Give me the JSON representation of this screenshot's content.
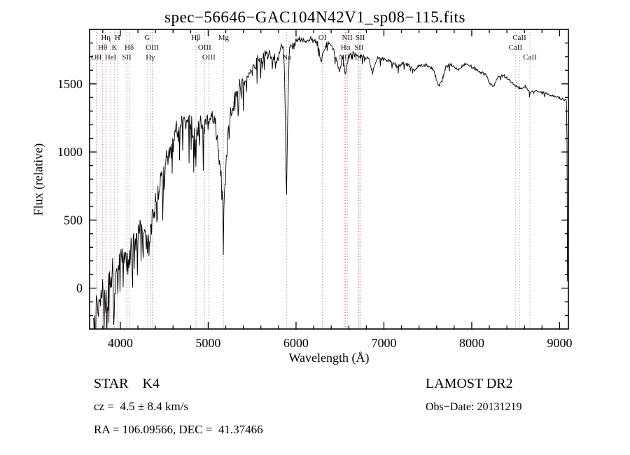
{
  "window": {
    "background": "#ffffff"
  },
  "footer": {
    "object_type": "STAR    K4",
    "survey": "LAMOST DR2",
    "cz": "cz =  4.5 ± 8.4 km/s",
    "obs_date": "Obs−Date: 20131219",
    "coordinates": "RA = 106.09566, DEC =  41.37466"
  },
  "chart_data": {
    "type": "line",
    "title": "spec−56646−GAC104N42V1_sp08−115.fits",
    "xlabel": "Wavelength (Å)",
    "ylabel": "Flux (relative)",
    "xlim": [
      3650,
      9100
    ],
    "ylim": [
      -300,
      1900
    ],
    "x_ticks": [
      4000,
      5000,
      6000,
      7000,
      8000,
      9000
    ],
    "y_ticks": [
      0,
      500,
      1000,
      1500
    ],
    "x_minor_step": 200,
    "y_minor_step": 100,
    "grid": false,
    "legend": "none",
    "line_colors": {
      "emission": "#dd8a8a",
      "absorption": "#b3b3b3"
    },
    "spectral_lines": [
      {
        "label": "OII",
        "wavelength": 3727,
        "row": 3,
        "kind": "emission"
      },
      {
        "label": "Hθ",
        "wavelength": 3798,
        "row": 2,
        "kind": "emission"
      },
      {
        "label": "Hη",
        "wavelength": 3835,
        "row": 1,
        "kind": "emission"
      },
      {
        "label": "HeI",
        "wavelength": 3889,
        "row": 3,
        "kind": "emission"
      },
      {
        "label": "K",
        "wavelength": 3933,
        "row": 2,
        "kind": "absorption"
      },
      {
        "label": "H",
        "wavelength": 3968,
        "row": 1,
        "kind": "absorption"
      },
      {
        "label": "SII",
        "wavelength": 4072,
        "row": 3,
        "kind": "emission"
      },
      {
        "label": "Hδ",
        "wavelength": 4101,
        "row": 2,
        "kind": "emission"
      },
      {
        "label": "G",
        "wavelength": 4305,
        "row": 1,
        "kind": "absorption"
      },
      {
        "label": "Hγ",
        "wavelength": 4340,
        "row": 3,
        "kind": "emission"
      },
      {
        "label": "OIII",
        "wavelength": 4363,
        "row": 2,
        "kind": "emission"
      },
      {
        "label": "Hβ",
        "wavelength": 4861,
        "row": 1,
        "kind": "emission"
      },
      {
        "label": "OIII",
        "wavelength": 4959,
        "row": 2,
        "kind": "emission"
      },
      {
        "label": "OIII",
        "wavelength": 5007,
        "row": 3,
        "kind": "emission"
      },
      {
        "label": "Mg",
        "wavelength": 5175,
        "row": 1,
        "kind": "absorption"
      },
      {
        "label": "Na",
        "wavelength": 5893,
        "row": 3,
        "kind": "absorption"
      },
      {
        "label": "OI",
        "wavelength": 6300,
        "row": 1,
        "kind": "emission"
      },
      {
        "label": "NII",
        "wavelength": 6548,
        "row": 3,
        "kind": "emission"
      },
      {
        "label": "Hα",
        "wavelength": 6563,
        "row": 2,
        "kind": "emission"
      },
      {
        "label": "NII",
        "wavelength": 6583,
        "row": 1,
        "kind": "emission"
      },
      {
        "label": "Li",
        "wavelength": 6708,
        "row": 3,
        "kind": "absorption"
      },
      {
        "label": "SII",
        "wavelength": 6716,
        "row": 2,
        "kind": "emission"
      },
      {
        "label": "SII",
        "wavelength": 6731,
        "row": 1,
        "kind": "emission"
      },
      {
        "label": "CaII",
        "wavelength": 8498,
        "row": 2,
        "kind": "absorption"
      },
      {
        "label": "CaII",
        "wavelength": 8542,
        "row": 1,
        "kind": "absorption"
      },
      {
        "label": "CaII",
        "wavelength": 8662,
        "row": 3,
        "kind": "absorption"
      }
    ],
    "series": [
      {
        "name": "flux",
        "color": "#000000",
        "envelope": [
          [
            3690,
            -150
          ],
          [
            3710,
            -120
          ],
          [
            3730,
            -40
          ],
          [
            3750,
            -80
          ],
          [
            3770,
            10
          ],
          [
            3800,
            60
          ],
          [
            3830,
            0
          ],
          [
            3860,
            150
          ],
          [
            3890,
            90
          ],
          [
            3915,
            200
          ],
          [
            3935,
            90
          ],
          [
            3955,
            220
          ],
          [
            3970,
            130
          ],
          [
            4000,
            280
          ],
          [
            4050,
            330
          ],
          [
            4100,
            240
          ],
          [
            4150,
            430
          ],
          [
            4200,
            470
          ],
          [
            4260,
            520
          ],
          [
            4305,
            430
          ],
          [
            4340,
            470
          ],
          [
            4380,
            650
          ],
          [
            4430,
            750
          ],
          [
            4480,
            900
          ],
          [
            4530,
            1000
          ],
          [
            4580,
            1120
          ],
          [
            4630,
            1210
          ],
          [
            4680,
            1260
          ],
          [
            4730,
            1280
          ],
          [
            4780,
            1260
          ],
          [
            4830,
            1240
          ],
          [
            4861,
            1150
          ],
          [
            4900,
            1260
          ],
          [
            4950,
            1280
          ],
          [
            5000,
            1290
          ],
          [
            5050,
            1280
          ],
          [
            5100,
            1180
          ],
          [
            5140,
            900
          ],
          [
            5175,
            580
          ],
          [
            5210,
            1050
          ],
          [
            5250,
            1300
          ],
          [
            5300,
            1430
          ],
          [
            5350,
            1510
          ],
          [
            5400,
            1550
          ],
          [
            5450,
            1590
          ],
          [
            5500,
            1650
          ],
          [
            5550,
            1700
          ],
          [
            5600,
            1720
          ],
          [
            5650,
            1740
          ],
          [
            5700,
            1760
          ],
          [
            5740,
            1720
          ],
          [
            5780,
            1680
          ],
          [
            5820,
            1770
          ],
          [
            5860,
            1800
          ],
          [
            5878,
            1300
          ],
          [
            5890,
            640
          ],
          [
            5904,
            1250
          ],
          [
            5925,
            1790
          ],
          [
            5960,
            1810
          ],
          [
            6000,
            1830
          ],
          [
            6050,
            1840
          ],
          [
            6100,
            1820
          ],
          [
            6150,
            1850
          ],
          [
            6200,
            1830
          ],
          [
            6250,
            1810
          ],
          [
            6285,
            1680
          ],
          [
            6310,
            1750
          ],
          [
            6350,
            1820
          ],
          [
            6400,
            1800
          ],
          [
            6450,
            1720
          ],
          [
            6495,
            1600
          ],
          [
            6530,
            1720
          ],
          [
            6563,
            1580
          ],
          [
            6600,
            1720
          ],
          [
            6650,
            1740
          ],
          [
            6700,
            1720
          ],
          [
            6760,
            1710
          ],
          [
            6820,
            1700
          ],
          [
            6870,
            1600
          ],
          [
            6920,
            1700
          ],
          [
            6980,
            1700
          ],
          [
            7040,
            1680
          ],
          [
            7100,
            1670
          ],
          [
            7160,
            1630
          ],
          [
            7220,
            1660
          ],
          [
            7280,
            1650
          ],
          [
            7340,
            1610
          ],
          [
            7400,
            1640
          ],
          [
            7460,
            1650
          ],
          [
            7520,
            1640
          ],
          [
            7570,
            1610
          ],
          [
            7615,
            1500
          ],
          [
            7660,
            1530
          ],
          [
            7710,
            1640
          ],
          [
            7760,
            1650
          ],
          [
            7810,
            1630
          ],
          [
            7860,
            1610
          ],
          [
            7910,
            1650
          ],
          [
            7960,
            1650
          ],
          [
            8010,
            1630
          ],
          [
            8060,
            1610
          ],
          [
            8110,
            1590
          ],
          [
            8160,
            1570
          ],
          [
            8210,
            1510
          ],
          [
            8250,
            1490
          ],
          [
            8300,
            1560
          ],
          [
            8360,
            1570
          ],
          [
            8420,
            1540
          ],
          [
            8470,
            1510
          ],
          [
            8510,
            1490
          ],
          [
            8550,
            1470
          ],
          [
            8610,
            1490
          ],
          [
            8662,
            1440
          ],
          [
            8710,
            1460
          ],
          [
            8760,
            1450
          ],
          [
            8810,
            1440
          ],
          [
            8860,
            1430
          ],
          [
            8910,
            1420
          ],
          [
            8960,
            1410
          ],
          [
            9010,
            1400
          ],
          [
            9050,
            1390
          ],
          [
            9075,
            1395
          ],
          [
            9083,
            1320
          ],
          [
            9088,
            150
          ],
          [
            9090,
            60
          ]
        ]
      }
    ],
    "noise": {
      "seed": 20131219,
      "sample_step": 6,
      "down_bias": 0.85,
      "up_frac": 0.4,
      "spike_extra": 1.6,
      "amplitude_points": [
        [
          3690,
          190
        ],
        [
          3900,
          170
        ],
        [
          4100,
          160
        ],
        [
          4300,
          150
        ],
        [
          4600,
          140
        ],
        [
          4900,
          130
        ],
        [
          5100,
          120
        ],
        [
          5300,
          100
        ],
        [
          5500,
          75
        ],
        [
          5700,
          60
        ],
        [
          5900,
          45
        ],
        [
          6100,
          35
        ],
        [
          6400,
          32
        ],
        [
          6700,
          28
        ],
        [
          7000,
          25
        ],
        [
          7400,
          22
        ],
        [
          7800,
          20
        ],
        [
          8200,
          20
        ],
        [
          8600,
          16
        ],
        [
          9090,
          12
        ]
      ],
      "spike_prob_points": [
        [
          3690,
          0.22
        ],
        [
          4500,
          0.2
        ],
        [
          5200,
          0.18
        ],
        [
          5600,
          0.1
        ],
        [
          6000,
          0.07
        ],
        [
          6500,
          0.05
        ],
        [
          7000,
          0.05
        ],
        [
          8000,
          0.04
        ],
        [
          9090,
          0.04
        ]
      ]
    }
  }
}
